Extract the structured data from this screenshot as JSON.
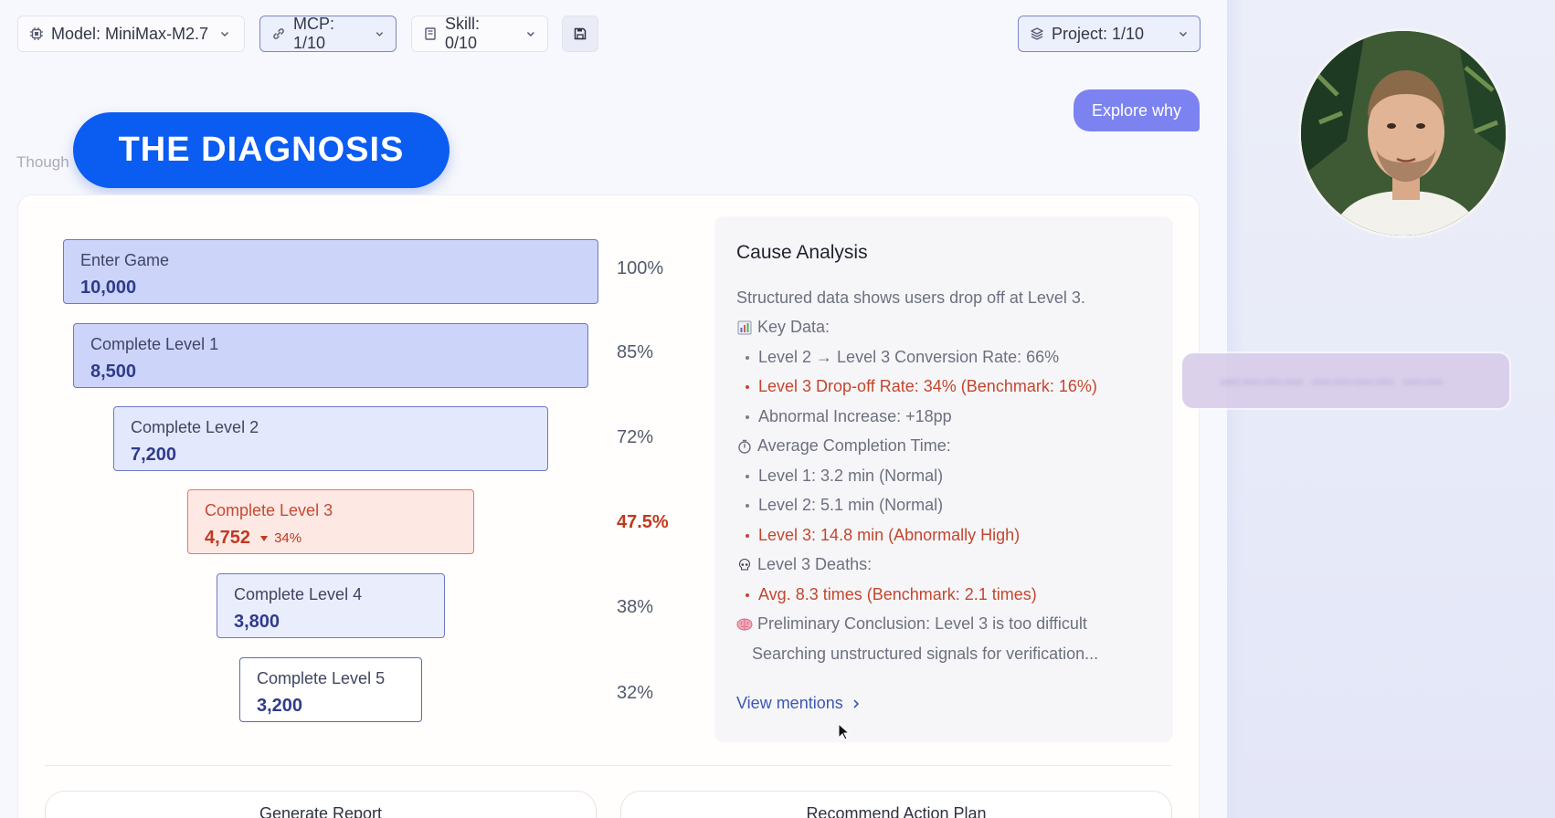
{
  "toolbar": {
    "model_label": "Model: MiniMax-M2.7",
    "mcp_label": "MCP: 1/10",
    "skill_label": "Skill: 0/10",
    "project_label": "Project: 1/10"
  },
  "chat": {
    "user_message": "Explore why",
    "thought_label": "Though"
  },
  "banner": {
    "title": "THE DIAGNOSIS"
  },
  "funnel": [
    {
      "label": "Enter Game",
      "value": "10,000",
      "percent": "100%"
    },
    {
      "label": "Complete Level 1",
      "value": "8,500",
      "percent": "85%"
    },
    {
      "label": "Complete Level 2",
      "value": "7,200",
      "percent": "72%"
    },
    {
      "label": "Complete Level 3",
      "value": "4,752",
      "drop": "34%",
      "percent": "47.5%"
    },
    {
      "label": "Complete Level 4",
      "value": "3,800",
      "percent": "38%"
    },
    {
      "label": "Complete Level 5",
      "value": "3,200",
      "percent": "32%"
    }
  ],
  "analysis": {
    "title": "Cause Analysis",
    "intro": "Structured data shows users drop off at Level 3.",
    "key_data_heading": "Key Data:",
    "conversion": "Level 2 → Level 3 Conversion Rate: 66%",
    "dropoff": "Level 3 Drop-off Rate: 34% (Benchmark: 16%)",
    "increase": "Abnormal Increase: +18pp",
    "time_heading": "Average Completion Time:",
    "time_l1": "Level 1: 3.2 min (Normal)",
    "time_l2": "Level 2: 5.1 min (Normal)",
    "time_l3": "Level 3: 14.8 min (Abnormally High)",
    "deaths_heading": "Level 3 Deaths:",
    "deaths_avg": "Avg. 8.3 times (Benchmark: 2.1 times)",
    "conclusion": "Preliminary Conclusion: Level 3 is too difficult",
    "searching": "Searching unstructured signals for verification...",
    "view_mentions": "View mentions"
  },
  "actions": {
    "generate_report": "Generate Report",
    "recommend_plan": "Recommend Action Plan"
  },
  "colors": {
    "accent_blue": "#0b5cf1",
    "alert_red": "#c0391f",
    "explore_purple": "#7c83f0"
  }
}
